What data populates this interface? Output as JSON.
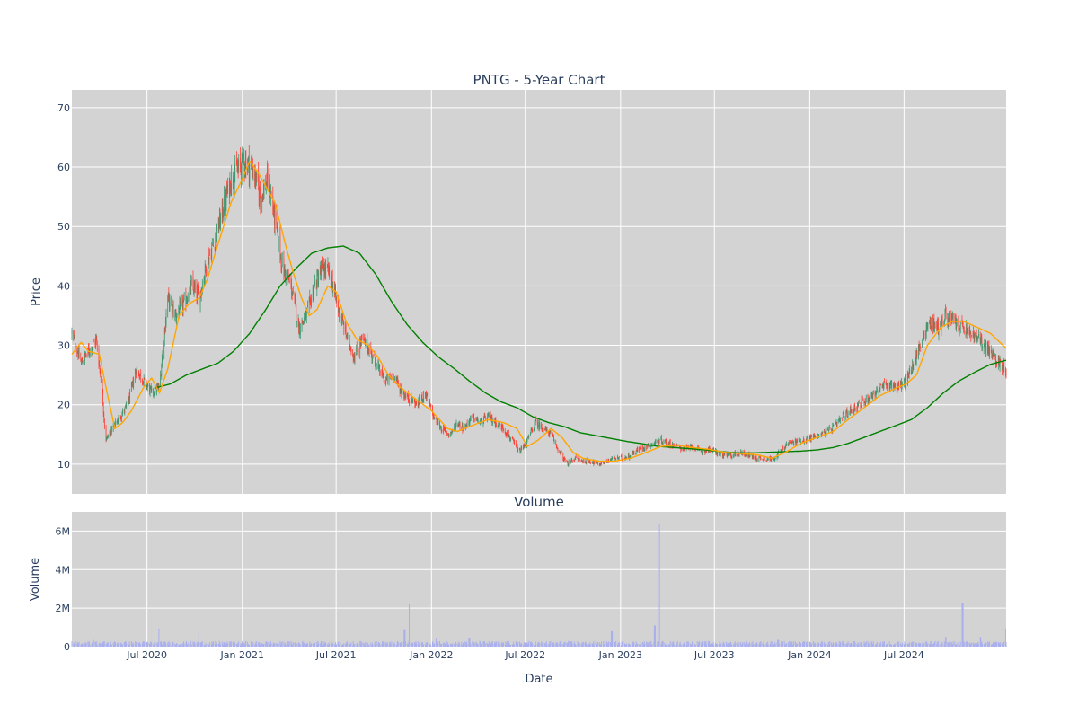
{
  "chart_data": [
    {
      "type": "candlestick",
      "title": "PNTG - 5-Year Chart",
      "ylabel": "Price",
      "xlabel": "",
      "x_range": [
        "2020-02-07",
        "2025-01-14"
      ],
      "ylim": [
        5,
        73
      ],
      "y_ticks": [
        10,
        20,
        30,
        40,
        50,
        60,
        70
      ],
      "x_ticks": [
        {
          "date": "2020-07-01",
          "label": "Jul 2020"
        },
        {
          "date": "2021-01-01",
          "label": "Jan 2021"
        },
        {
          "date": "2021-07-01",
          "label": "Jul 2021"
        },
        {
          "date": "2022-01-01",
          "label": "Jan 2022"
        },
        {
          "date": "2022-07-01",
          "label": "Jul 2022"
        },
        {
          "date": "2023-01-01",
          "label": "Jan 2023"
        },
        {
          "date": "2023-07-01",
          "label": "Jul 2023"
        },
        {
          "date": "2024-01-01",
          "label": "Jan 2024"
        },
        {
          "date": "2024-07-01",
          "label": "Jul 2024"
        }
      ],
      "grid": true,
      "colors": {
        "up": "#3d9970",
        "down": "#ff4136",
        "ma_short": "#ffa500",
        "ma_long": "#008000",
        "plot_bg": "#d3d3d3"
      },
      "close_keypoints": [
        [
          "2020-02-07",
          32
        ],
        [
          "2020-02-25",
          27
        ],
        [
          "2020-03-10",
          29
        ],
        [
          "2020-03-25",
          31
        ],
        [
          "2020-04-05",
          23
        ],
        [
          "2020-04-12",
          14
        ],
        [
          "2020-04-25",
          16
        ],
        [
          "2020-05-10",
          18
        ],
        [
          "2020-05-25",
          20
        ],
        [
          "2020-06-10",
          26
        ],
        [
          "2020-06-25",
          24
        ],
        [
          "2020-07-10",
          22
        ],
        [
          "2020-07-25",
          23
        ],
        [
          "2020-08-10",
          38
        ],
        [
          "2020-08-25",
          35
        ],
        [
          "2020-09-10",
          37
        ],
        [
          "2020-09-25",
          40
        ],
        [
          "2020-10-10",
          38
        ],
        [
          "2020-10-25",
          44
        ],
        [
          "2020-11-10",
          48
        ],
        [
          "2020-11-25",
          53
        ],
        [
          "2020-12-10",
          58
        ],
        [
          "2021-01-05",
          61
        ],
        [
          "2021-01-20",
          60
        ],
        [
          "2021-02-05",
          55
        ],
        [
          "2021-02-20",
          58
        ],
        [
          "2021-03-05",
          51
        ],
        [
          "2021-03-20",
          43
        ],
        [
          "2021-04-05",
          40
        ],
        [
          "2021-04-20",
          33
        ],
        [
          "2021-05-05",
          35
        ],
        [
          "2021-05-20",
          40
        ],
        [
          "2021-06-05",
          43
        ],
        [
          "2021-06-20",
          42
        ],
        [
          "2021-07-05",
          36
        ],
        [
          "2021-07-20",
          32
        ],
        [
          "2021-08-05",
          28
        ],
        [
          "2021-08-20",
          31
        ],
        [
          "2021-09-05",
          29
        ],
        [
          "2021-09-20",
          26
        ],
        [
          "2021-10-05",
          24
        ],
        [
          "2021-10-20",
          25
        ],
        [
          "2021-11-05",
          22
        ],
        [
          "2021-11-20",
          21
        ],
        [
          "2021-12-05",
          20
        ],
        [
          "2021-12-20",
          22
        ],
        [
          "2022-01-05",
          18
        ],
        [
          "2022-01-20",
          16
        ],
        [
          "2022-02-05",
          15
        ],
        [
          "2022-02-20",
          17
        ],
        [
          "2022-03-05",
          16
        ],
        [
          "2022-03-20",
          18
        ],
        [
          "2022-04-05",
          17
        ],
        [
          "2022-04-20",
          18
        ],
        [
          "2022-05-05",
          17
        ],
        [
          "2022-05-20",
          16
        ],
        [
          "2022-06-05",
          14
        ],
        [
          "2022-06-20",
          12
        ],
        [
          "2022-07-05",
          14
        ],
        [
          "2022-07-20",
          17
        ],
        [
          "2022-08-05",
          16
        ],
        [
          "2022-08-20",
          15
        ],
        [
          "2022-09-05",
          12
        ],
        [
          "2022-09-20",
          10
        ],
        [
          "2022-10-05",
          11
        ],
        [
          "2022-10-20",
          10.5
        ],
        [
          "2022-11-05",
          10.5
        ],
        [
          "2022-11-20",
          10
        ],
        [
          "2022-12-05",
          10.5
        ],
        [
          "2022-12-20",
          11
        ],
        [
          "2023-01-05",
          11
        ],
        [
          "2023-01-20",
          11.5
        ],
        [
          "2023-02-05",
          12.5
        ],
        [
          "2023-02-20",
          13
        ],
        [
          "2023-03-05",
          13.5
        ],
        [
          "2023-03-20",
          14
        ],
        [
          "2023-04-05",
          13.5
        ],
        [
          "2023-04-20",
          13
        ],
        [
          "2023-05-05",
          12.5
        ],
        [
          "2023-05-20",
          13
        ],
        [
          "2023-06-05",
          12
        ],
        [
          "2023-06-20",
          12.5
        ],
        [
          "2023-07-05",
          12
        ],
        [
          "2023-07-20",
          11.5
        ],
        [
          "2023-08-05",
          11.5
        ],
        [
          "2023-08-20",
          12
        ],
        [
          "2023-09-05",
          11.5
        ],
        [
          "2023-09-20",
          11
        ],
        [
          "2023-10-05",
          11
        ],
        [
          "2023-10-20",
          10.8
        ],
        [
          "2023-11-05",
          12
        ],
        [
          "2023-11-20",
          13.5
        ],
        [
          "2023-12-05",
          13.8
        ],
        [
          "2023-12-20",
          14
        ],
        [
          "2024-01-05",
          14.5
        ],
        [
          "2024-01-20",
          15
        ],
        [
          "2024-02-05",
          15.5
        ],
        [
          "2024-02-20",
          16.5
        ],
        [
          "2024-03-05",
          18
        ],
        [
          "2024-03-20",
          19
        ],
        [
          "2024-04-05",
          20
        ],
        [
          "2024-04-20",
          21
        ],
        [
          "2024-05-05",
          22
        ],
        [
          "2024-05-20",
          23
        ],
        [
          "2024-06-05",
          23.5
        ],
        [
          "2024-06-20",
          23
        ],
        [
          "2024-07-05",
          24
        ],
        [
          "2024-07-20",
          27
        ],
        [
          "2024-08-05",
          31
        ],
        [
          "2024-08-20",
          34
        ],
        [
          "2024-09-05",
          33
        ],
        [
          "2024-09-20",
          35
        ],
        [
          "2024-10-05",
          34
        ],
        [
          "2024-10-20",
          33
        ],
        [
          "2024-11-05",
          32
        ],
        [
          "2024-11-20",
          31
        ],
        [
          "2024-12-05",
          30
        ],
        [
          "2024-12-20",
          28
        ],
        [
          "2025-01-14",
          26
        ]
      ],
      "ma_short_keypoints": [
        [
          "2020-02-07",
          28.5
        ],
        [
          "2020-02-25",
          30.5
        ],
        [
          "2020-03-10",
          29
        ],
        [
          "2020-03-31",
          28.5
        ],
        [
          "2020-04-15",
          22
        ],
        [
          "2020-04-30",
          16
        ],
        [
          "2020-05-15",
          17
        ],
        [
          "2020-06-01",
          19
        ],
        [
          "2020-06-25",
          23
        ],
        [
          "2020-07-10",
          24.5
        ],
        [
          "2020-07-25",
          22
        ],
        [
          "2020-08-10",
          26
        ],
        [
          "2020-09-01",
          35
        ],
        [
          "2020-09-20",
          37
        ],
        [
          "2020-10-10",
          38
        ],
        [
          "2020-10-25",
          41
        ],
        [
          "2020-11-15",
          47
        ],
        [
          "2020-12-10",
          54
        ],
        [
          "2021-01-01",
          58
        ],
        [
          "2021-01-15",
          61
        ],
        [
          "2021-02-01",
          59
        ],
        [
          "2021-02-20",
          56
        ],
        [
          "2021-03-05",
          54
        ],
        [
          "2021-03-25",
          47
        ],
        [
          "2021-04-10",
          42
        ],
        [
          "2021-04-25",
          38
        ],
        [
          "2021-05-10",
          35
        ],
        [
          "2021-05-25",
          36
        ],
        [
          "2021-06-15",
          40
        ],
        [
          "2021-07-01",
          39
        ],
        [
          "2021-07-20",
          34
        ],
        [
          "2021-08-10",
          31
        ],
        [
          "2021-09-01",
          30
        ],
        [
          "2021-09-20",
          28
        ],
        [
          "2021-10-10",
          25
        ],
        [
          "2021-11-01",
          23
        ],
        [
          "2021-12-01",
          21
        ],
        [
          "2022-01-01",
          19
        ],
        [
          "2022-02-01",
          16
        ],
        [
          "2022-02-20",
          15.5
        ],
        [
          "2022-03-20",
          16.5
        ],
        [
          "2022-04-20",
          17.5
        ],
        [
          "2022-05-20",
          17
        ],
        [
          "2022-06-15",
          16
        ],
        [
          "2022-07-05",
          13
        ],
        [
          "2022-07-25",
          14
        ],
        [
          "2022-08-20",
          16
        ],
        [
          "2022-09-10",
          14.5
        ],
        [
          "2022-10-01",
          12
        ],
        [
          "2022-10-20",
          11
        ],
        [
          "2022-11-20",
          10.5
        ],
        [
          "2022-12-20",
          10.5
        ],
        [
          "2023-01-20",
          11
        ],
        [
          "2023-02-20",
          12
        ],
        [
          "2023-03-20",
          13
        ],
        [
          "2023-04-20",
          13.2
        ],
        [
          "2023-05-20",
          12.8
        ],
        [
          "2023-06-20",
          12.5
        ],
        [
          "2023-07-20",
          12
        ],
        [
          "2023-08-20",
          11.8
        ],
        [
          "2023-09-20",
          11.6
        ],
        [
          "2023-10-20",
          11
        ],
        [
          "2023-11-15",
          12
        ],
        [
          "2023-12-15",
          13.5
        ],
        [
          "2024-01-15",
          14.5
        ],
        [
          "2024-02-15",
          15.5
        ],
        [
          "2024-03-15",
          17.5
        ],
        [
          "2024-04-15",
          19.5
        ],
        [
          "2024-05-15",
          21.5
        ],
        [
          "2024-06-15",
          22.8
        ],
        [
          "2024-07-05",
          23.5
        ],
        [
          "2024-07-25",
          25
        ],
        [
          "2024-08-15",
          30
        ],
        [
          "2024-09-10",
          33
        ],
        [
          "2024-10-01",
          34
        ],
        [
          "2024-10-25",
          34
        ],
        [
          "2024-11-20",
          33
        ],
        [
          "2024-12-15",
          32
        ],
        [
          "2025-01-14",
          29.5
        ]
      ],
      "ma_long_keypoints": [
        [
          "2020-07-15",
          22.8
        ],
        [
          "2020-08-15",
          23.5
        ],
        [
          "2020-09-15",
          25
        ],
        [
          "2020-10-15",
          26
        ],
        [
          "2020-11-15",
          27
        ],
        [
          "2020-12-15",
          29
        ],
        [
          "2021-01-15",
          32
        ],
        [
          "2021-02-15",
          36
        ],
        [
          "2021-03-15",
          40
        ],
        [
          "2021-04-15",
          43
        ],
        [
          "2021-05-15",
          45.5
        ],
        [
          "2021-06-15",
          46.4
        ],
        [
          "2021-07-15",
          46.7
        ],
        [
          "2021-08-15",
          45.5
        ],
        [
          "2021-09-15",
          42
        ],
        [
          "2021-10-15",
          37.5
        ],
        [
          "2021-11-15",
          33.5
        ],
        [
          "2021-12-15",
          30.5
        ],
        [
          "2022-01-15",
          28
        ],
        [
          "2022-02-15",
          26
        ],
        [
          "2022-03-15",
          24
        ],
        [
          "2022-04-15",
          22
        ],
        [
          "2022-05-15",
          20.5
        ],
        [
          "2022-06-15",
          19.5
        ],
        [
          "2022-07-15",
          18
        ],
        [
          "2022-08-15",
          17
        ],
        [
          "2022-09-15",
          16.3
        ],
        [
          "2022-10-15",
          15.3
        ],
        [
          "2022-11-15",
          14.8
        ],
        [
          "2022-12-15",
          14.3
        ],
        [
          "2023-01-15",
          13.8
        ],
        [
          "2023-02-15",
          13.4
        ],
        [
          "2023-03-15",
          13
        ],
        [
          "2023-04-15",
          12.8
        ],
        [
          "2023-05-15",
          12.6
        ],
        [
          "2023-06-15",
          12.4
        ],
        [
          "2023-07-15",
          12.1
        ],
        [
          "2023-08-15",
          11.9
        ],
        [
          "2023-09-15",
          11.9
        ],
        [
          "2023-10-15",
          12
        ],
        [
          "2023-11-15",
          12.1
        ],
        [
          "2023-12-15",
          12.2
        ],
        [
          "2024-01-15",
          12.4
        ],
        [
          "2024-02-15",
          12.8
        ],
        [
          "2024-03-15",
          13.5
        ],
        [
          "2024-04-15",
          14.5
        ],
        [
          "2024-05-15",
          15.5
        ],
        [
          "2024-06-15",
          16.5
        ],
        [
          "2024-07-15",
          17.5
        ],
        [
          "2024-08-15",
          19.5
        ],
        [
          "2024-09-15",
          22
        ],
        [
          "2024-10-15",
          24
        ],
        [
          "2024-11-15",
          25.5
        ],
        [
          "2024-12-15",
          26.8
        ],
        [
          "2025-01-14",
          27.5
        ]
      ]
    },
    {
      "type": "bar",
      "title": "Volume",
      "ylabel": "Volume",
      "xlabel": "Date",
      "x_range": [
        "2020-02-07",
        "2025-01-14"
      ],
      "ylim": [
        0,
        7000000
      ],
      "y_ticks": [
        {
          "value": 0,
          "label": "0"
        },
        {
          "value": 2000000,
          "label": "2M"
        },
        {
          "value": 4000000,
          "label": "4M"
        },
        {
          "value": 6000000,
          "label": "6M"
        }
      ],
      "x_ticks": [
        {
          "date": "2020-07-01",
          "label": "Jul 2020"
        },
        {
          "date": "2021-01-01",
          "label": "Jan 2021"
        },
        {
          "date": "2021-07-01",
          "label": "Jul 2021"
        },
        {
          "date": "2022-01-01",
          "label": "Jan 2022"
        },
        {
          "date": "2022-07-01",
          "label": "Jul 2022"
        },
        {
          "date": "2023-01-01",
          "label": "Jan 2023"
        },
        {
          "date": "2023-07-01",
          "label": "Jul 2023"
        },
        {
          "date": "2024-01-01",
          "label": "Jan 2024"
        },
        {
          "date": "2024-07-01",
          "label": "Jul 2024"
        }
      ],
      "grid": true,
      "colors": {
        "bar": "#aab0ee",
        "plot_bg": "#d3d3d3"
      },
      "baseline_volume": 180000,
      "spikes": [
        [
          "2020-03-20",
          350000
        ],
        [
          "2020-07-25",
          950000
        ],
        [
          "2020-10-10",
          700000
        ],
        [
          "2021-11-10",
          900000
        ],
        [
          "2021-11-20",
          2200000
        ],
        [
          "2022-01-10",
          400000
        ],
        [
          "2022-03-15",
          450000
        ],
        [
          "2022-12-15",
          800000
        ],
        [
          "2023-03-08",
          1100000
        ],
        [
          "2023-03-18",
          6400000
        ],
        [
          "2023-11-01",
          350000
        ],
        [
          "2024-09-20",
          500000
        ],
        [
          "2024-10-22",
          2250000
        ],
        [
          "2024-11-25",
          500000
        ],
        [
          "2025-01-12",
          950000
        ]
      ]
    }
  ]
}
